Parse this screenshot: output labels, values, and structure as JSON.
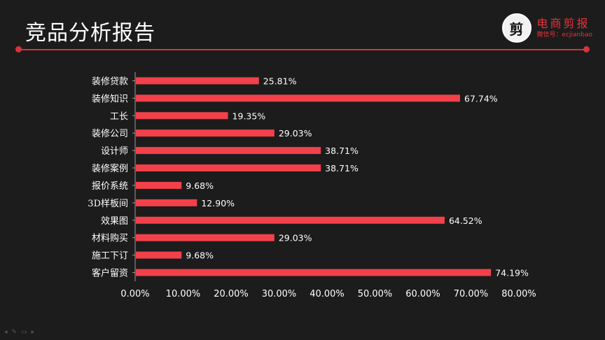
{
  "header": {
    "title": "竞品分析报告",
    "brand_logo_char": "剪",
    "brand_name": "电商剪报",
    "brand_sub": "微信号：ecjianbao"
  },
  "colors": {
    "background": "#1c1c1c",
    "bar": "#f2414a",
    "accent": "#d7333a",
    "text": "#ffffff"
  },
  "chart_data": {
    "type": "bar",
    "orientation": "horizontal",
    "categories": [
      "装修贷款",
      "装修知识",
      "工长",
      "装修公司",
      "设计师",
      "装修案例",
      "报价系统",
      "3D样板间",
      "效果图",
      "材料购买",
      "施工下订",
      "客户留资"
    ],
    "values": [
      25.81,
      67.74,
      19.35,
      29.03,
      38.71,
      38.71,
      9.68,
      12.9,
      64.52,
      29.03,
      9.68,
      74.19
    ],
    "data_labels": [
      "25.81%",
      "67.74%",
      "19.35%",
      "29.03%",
      "38.71%",
      "38.71%",
      "9.68%",
      "12.90%",
      "64.52%",
      "29.03%",
      "9.68%",
      "74.19%"
    ],
    "xlim": [
      0,
      80
    ],
    "x_ticks": [
      "0.00%",
      "10.00%",
      "20.00%",
      "30.00%",
      "40.00%",
      "50.00%",
      "60.00%",
      "70.00%",
      "80.00%"
    ],
    "grid": false,
    "legend": "none"
  }
}
